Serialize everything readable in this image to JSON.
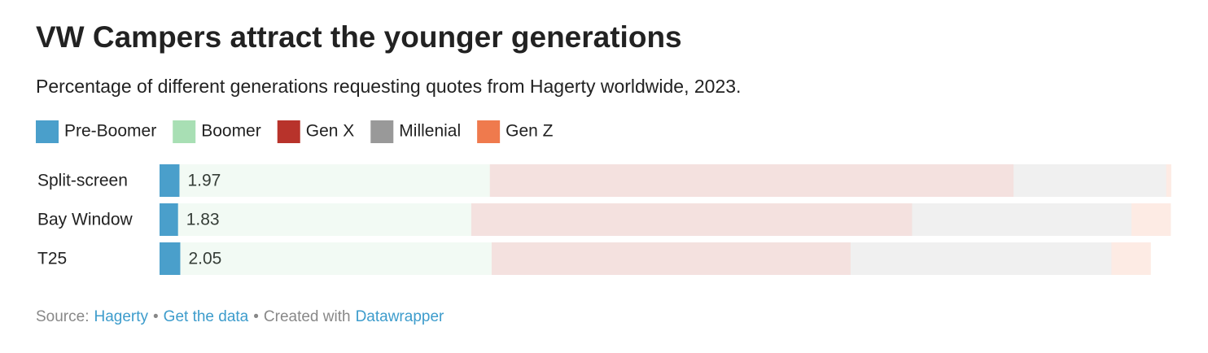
{
  "chart_data": {
    "type": "stacked-bar",
    "title": "VW Campers attract the younger generations",
    "subtitle": "Percentage of different generations requesting quotes from Hagerty worldwide, 2023.",
    "categories": [
      "Split-screen",
      "Bay Window",
      "T25"
    ],
    "series": [
      {
        "name": "Pre-Boomer",
        "color": "#4a9fcb",
        "values": [
          1.97,
          1.83,
          2.05
        ]
      },
      {
        "name": "Boomer",
        "color": "#a8dfb4",
        "values": [
          30.7,
          29.0,
          30.8
        ]
      },
      {
        "name": "Gen X",
        "color": "#b8332b",
        "values": [
          51.8,
          43.6,
          35.5
        ]
      },
      {
        "name": "Millenial",
        "color": "#999999",
        "values": [
          15.1,
          21.7,
          25.8
        ]
      },
      {
        "name": "Gen Z",
        "color": "#ef7a4d",
        "values": [
          0.5,
          3.9,
          3.9
        ]
      }
    ],
    "xlim": [
      0,
      100
    ]
  },
  "footer": {
    "source_label": "Source:",
    "source": "Hagerty",
    "separator": "•",
    "get_data": "Get the data",
    "created_with": "Created with",
    "tool": "Datawrapper"
  }
}
